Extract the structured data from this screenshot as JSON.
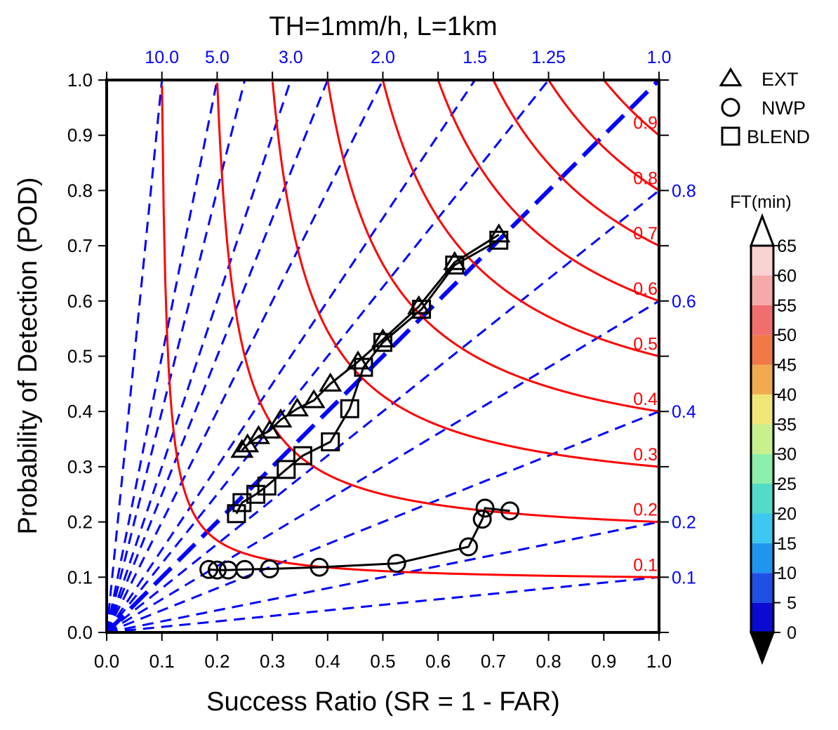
{
  "chart_data": {
    "type": "scatter",
    "title": "TH=1mm/h, L=1km",
    "xlabel": "Success Ratio (SR = 1 - FAR)",
    "ylabel": "Probability of Detection (POD)",
    "xlim": [
      0,
      1
    ],
    "ylim": [
      0,
      1
    ],
    "x_ticks": [
      "0.0",
      "0.1",
      "0.2",
      "0.3",
      "0.4",
      "0.5",
      "0.6",
      "0.7",
      "0.8",
      "0.9",
      "1.0"
    ],
    "y_ticks": [
      "0.0",
      "0.1",
      "0.2",
      "0.3",
      "0.4",
      "0.5",
      "0.6",
      "0.7",
      "0.8",
      "0.9",
      "1.0"
    ],
    "bias_lines": [
      {
        "value": 10.0,
        "label": "10.0",
        "position": "top"
      },
      {
        "value": 5.0,
        "label": "5.0",
        "position": "top"
      },
      {
        "value": 4.0,
        "label": "",
        "position": "none"
      },
      {
        "value": 3.0,
        "label": "3.0",
        "position": "top"
      },
      {
        "value": 2.5,
        "label": "",
        "position": "none"
      },
      {
        "value": 2.0,
        "label": "2.0",
        "position": "top"
      },
      {
        "value": 1.5,
        "label": "1.5",
        "position": "top"
      },
      {
        "value": 1.25,
        "label": "1.25",
        "position": "top"
      },
      {
        "value": 1.0,
        "label": "1.0",
        "position": "top"
      },
      {
        "value": 0.8,
        "label": "0.8",
        "position": "right"
      },
      {
        "value": 0.6,
        "label": "0.6",
        "position": "right"
      },
      {
        "value": 0.4,
        "label": "0.4",
        "position": "right"
      },
      {
        "value": 0.2,
        "label": "0.2",
        "position": "right"
      },
      {
        "value": 0.1,
        "label": "0.1",
        "position": "right"
      }
    ],
    "csi_lines": [
      {
        "value": 0.1,
        "label": "0.1"
      },
      {
        "value": 0.2,
        "label": "0.2"
      },
      {
        "value": 0.3,
        "label": "0.3"
      },
      {
        "value": 0.4,
        "label": "0.4"
      },
      {
        "value": 0.5,
        "label": "0.5"
      },
      {
        "value": 0.6,
        "label": "0.6"
      },
      {
        "value": 0.7,
        "label": "0.7"
      },
      {
        "value": 0.8,
        "label": "0.8"
      },
      {
        "value": 0.9,
        "label": "0.9"
      }
    ],
    "series": [
      {
        "name": "EXT",
        "marker": "triangle",
        "x": [
          0.71,
          0.63,
          0.565,
          0.5,
          0.455,
          0.405,
          0.375,
          0.345,
          0.315,
          0.295,
          0.275,
          0.255,
          0.245
        ],
        "y": [
          0.72,
          0.67,
          0.59,
          0.53,
          0.49,
          0.45,
          0.42,
          0.405,
          0.385,
          0.365,
          0.355,
          0.34,
          0.33
        ]
      },
      {
        "name": "NWP",
        "marker": "circle",
        "x": [
          0.73,
          0.685,
          0.68,
          0.655,
          0.525,
          0.385,
          0.295,
          0.25,
          0.22,
          0.2,
          0.185
        ],
        "y": [
          0.22,
          0.225,
          0.205,
          0.155,
          0.125,
          0.118,
          0.115,
          0.114,
          0.113,
          0.113,
          0.114
        ]
      },
      {
        "name": "BLEND",
        "marker": "square",
        "x": [
          0.71,
          0.63,
          0.57,
          0.5,
          0.465,
          0.44,
          0.405,
          0.355,
          0.325,
          0.29,
          0.27,
          0.245,
          0.235
        ],
        "y": [
          0.71,
          0.665,
          0.585,
          0.525,
          0.48,
          0.405,
          0.345,
          0.32,
          0.295,
          0.265,
          0.25,
          0.235,
          0.215
        ]
      }
    ],
    "legend": [
      {
        "label": "EXT",
        "marker": "triangle"
      },
      {
        "label": "NWP",
        "marker": "circle"
      },
      {
        "label": "BLEND",
        "marker": "square"
      }
    ],
    "colorbar": {
      "title": "FT(min)",
      "levels": [
        "0",
        "5",
        "10",
        "15",
        "20",
        "25",
        "30",
        "35",
        "40",
        "45",
        "50",
        "55",
        "60",
        "65"
      ],
      "colors": [
        "#0a0066",
        "#0a0ad2",
        "#1e50e6",
        "#1e96f0",
        "#3cc8f0",
        "#50dcc8",
        "#8cf0aa",
        "#c8f08c",
        "#f0e678",
        "#f0aa50",
        "#f07846",
        "#f06e6e",
        "#f5aaaa",
        "#fad2d2",
        "#fff0f0"
      ],
      "under_color": "#000000",
      "over_color": "#ffffff"
    },
    "colors": {
      "bias_line": "#0000ff",
      "csi_line": "#ff0000",
      "series_line": "#000000"
    }
  }
}
